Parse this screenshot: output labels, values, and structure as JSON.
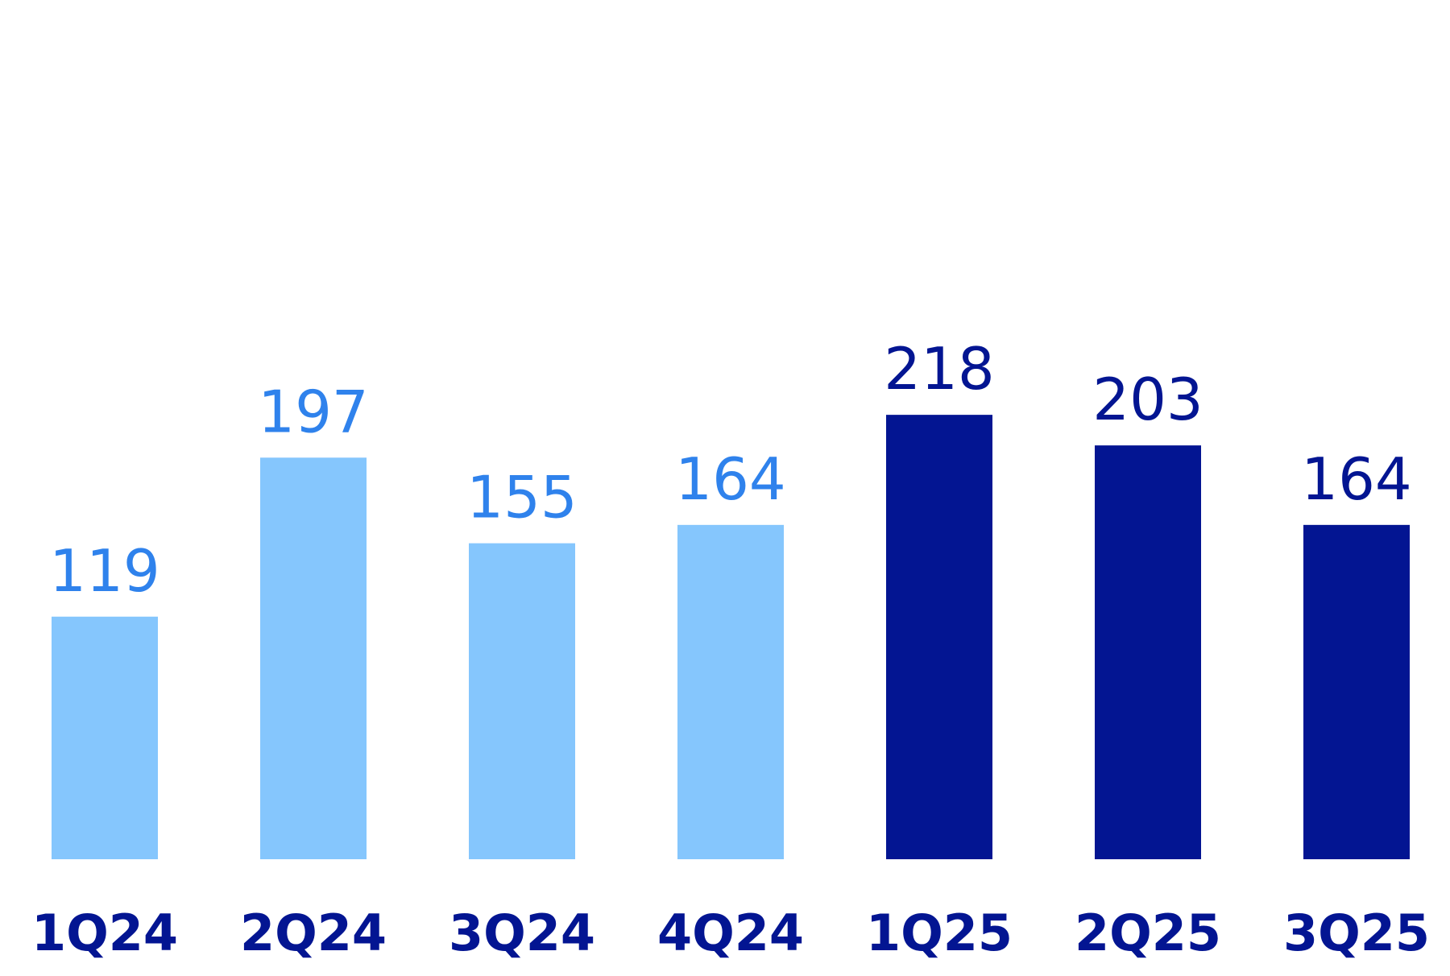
{
  "chart_data": {
    "type": "bar",
    "title": "",
    "xlabel": "",
    "ylabel": "",
    "categories": [
      "1Q24",
      "2Q24",
      "3Q24",
      "4Q24",
      "1Q25",
      "2Q25",
      "3Q25"
    ],
    "values": [
      119,
      197,
      155,
      164,
      218,
      203,
      164
    ],
    "value_labels": [
      "119",
      "197",
      "155",
      "164",
      "218",
      "203",
      "164"
    ],
    "ylim": [
      0,
      290
    ],
    "grid": false,
    "legend": "none",
    "colors": {
      "bar_2024": "#85c6fd",
      "bar_2025": "#031592",
      "label_2024": "#2f82ec",
      "label_2025": "#031592",
      "category_label": "#031592"
    },
    "bar_groups": [
      "2024",
      "2024",
      "2024",
      "2024",
      "2025",
      "2025",
      "2025"
    ]
  }
}
